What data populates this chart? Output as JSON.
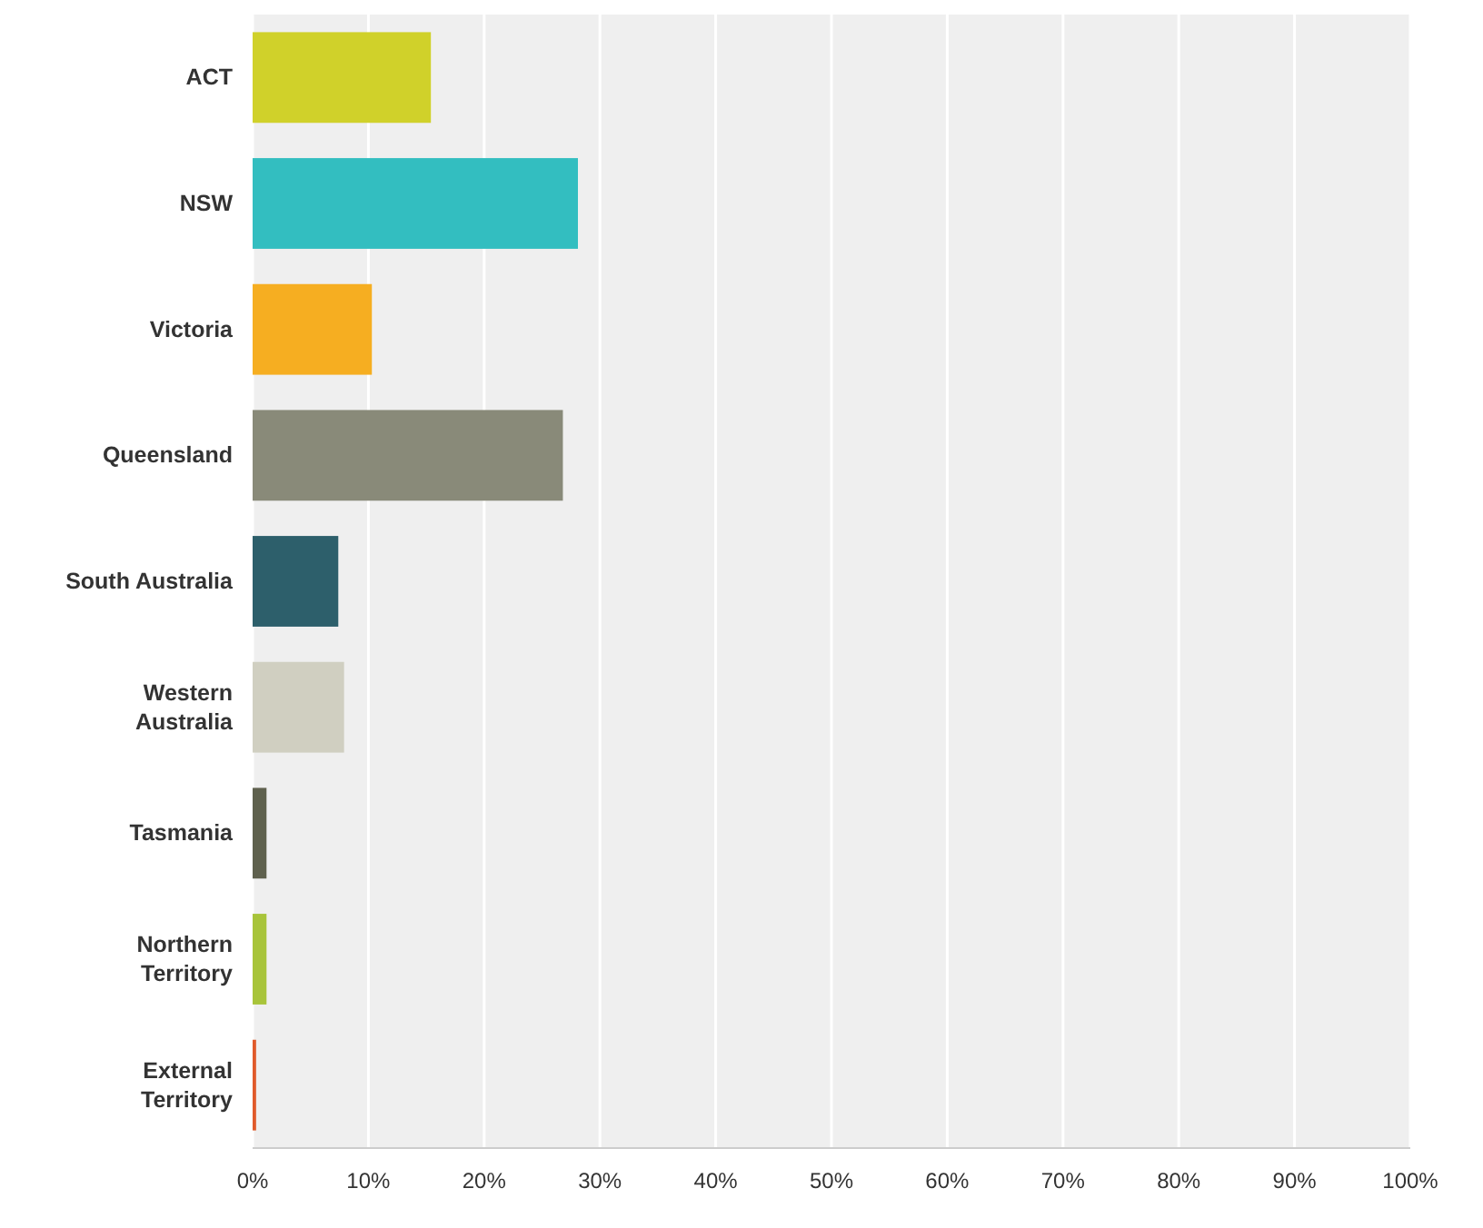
{
  "chart_data": {
    "type": "bar",
    "orientation": "horizontal",
    "categories": [
      "ACT",
      "NSW",
      "Victoria",
      "Queensland",
      "South Australia",
      "Western Australia",
      "Tasmania",
      "Northern Territory",
      "External Territory"
    ],
    "values": [
      15.4,
      28.1,
      10.3,
      26.8,
      7.4,
      7.9,
      1.2,
      1.2,
      0.3
    ],
    "colors": [
      "#d0d12a",
      "#33bec0",
      "#f6ae21",
      "#898a79",
      "#2d5f6b",
      "#d0cfc1",
      "#5f614e",
      "#a8c43a",
      "#e05a2a"
    ],
    "xlim": [
      0,
      100
    ],
    "xticks": [
      {
        "value": 0,
        "label": "0%"
      },
      {
        "value": 10,
        "label": "10%"
      },
      {
        "value": 20,
        "label": "20%"
      },
      {
        "value": 30,
        "label": "30%"
      },
      {
        "value": 40,
        "label": "40%"
      },
      {
        "value": 50,
        "label": "50%"
      },
      {
        "value": 60,
        "label": "60%"
      },
      {
        "value": 70,
        "label": "70%"
      },
      {
        "value": 80,
        "label": "80%"
      },
      {
        "value": 90,
        "label": "90%"
      },
      {
        "value": 100,
        "label": "100%"
      }
    ],
    "grid": "x"
  }
}
